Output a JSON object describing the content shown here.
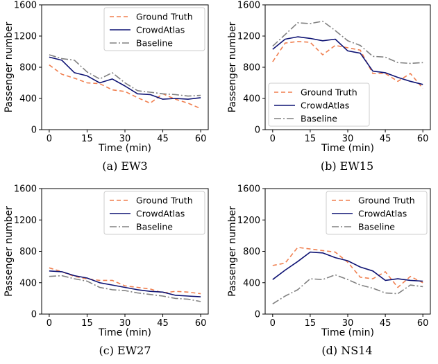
{
  "legend": [
    "Ground Truth",
    "CrowdAtlas",
    "Baseline"
  ],
  "colors": {
    "Ground Truth": "#f07f4f",
    "CrowdAtlas": "#0d1273",
    "Baseline": "#808080"
  },
  "chart_data": [
    {
      "type": "line",
      "caption": "(a)  EW3",
      "xlabel": "Time (min)",
      "ylabel": "Passenger number",
      "xlim": [
        -3,
        63
      ],
      "ylim": [
        0,
        1600
      ],
      "xticks": [
        0,
        15,
        30,
        45,
        60
      ],
      "yticks": [
        0,
        400,
        800,
        1200,
        1600
      ],
      "grid": false,
      "legend_position": "top-right",
      "x": [
        0,
        5,
        10,
        15,
        20,
        25,
        30,
        35,
        40,
        45,
        50,
        55,
        60
      ],
      "series": [
        {
          "name": "Ground Truth",
          "values": [
            830,
            710,
            660,
            600,
            590,
            510,
            490,
            410,
            340,
            460,
            390,
            340,
            270
          ]
        },
        {
          "name": "CrowdAtlas",
          "values": [
            930,
            890,
            730,
            690,
            600,
            650,
            560,
            460,
            450,
            390,
            400,
            390,
            410
          ]
        },
        {
          "name": "Baseline",
          "values": [
            960,
            910,
            890,
            740,
            650,
            730,
            600,
            500,
            480,
            460,
            450,
            430,
            440
          ]
        }
      ]
    },
    {
      "type": "line",
      "caption": "(b)  EW15",
      "xlabel": "Time (min)",
      "ylabel": "Passenger number",
      "xlim": [
        -3,
        63
      ],
      "ylim": [
        0,
        1600
      ],
      "xticks": [
        0,
        15,
        30,
        45,
        60
      ],
      "yticks": [
        0,
        400,
        800,
        1200,
        1600
      ],
      "grid": false,
      "legend_position": "bottom-left",
      "x": [
        0,
        5,
        10,
        15,
        20,
        25,
        30,
        35,
        40,
        45,
        50,
        55,
        60
      ],
      "series": [
        {
          "name": "Ground Truth",
          "values": [
            870,
            1110,
            1130,
            1120,
            960,
            1080,
            1050,
            1020,
            720,
            720,
            620,
            720,
            530
          ]
        },
        {
          "name": "CrowdAtlas",
          "values": [
            1030,
            1160,
            1190,
            1170,
            1140,
            1160,
            1010,
            980,
            750,
            730,
            670,
            620,
            580
          ]
        },
        {
          "name": "Baseline",
          "values": [
            1070,
            1220,
            1370,
            1360,
            1390,
            1270,
            1140,
            1080,
            940,
            930,
            860,
            850,
            860
          ]
        }
      ]
    },
    {
      "type": "line",
      "caption": "(c)  EW27",
      "xlabel": "Time (min)",
      "ylabel": "Passenger number",
      "xlim": [
        -3,
        63
      ],
      "ylim": [
        0,
        1600
      ],
      "xticks": [
        0,
        15,
        30,
        45,
        60
      ],
      "yticks": [
        0,
        400,
        800,
        1200,
        1600
      ],
      "grid": false,
      "legend_position": "top-right",
      "x": [
        0,
        5,
        10,
        15,
        20,
        25,
        30,
        35,
        40,
        45,
        50,
        55,
        60
      ],
      "series": [
        {
          "name": "Ground Truth",
          "values": [
            590,
            540,
            480,
            450,
            430,
            430,
            360,
            340,
            320,
            270,
            290,
            280,
            260
          ]
        },
        {
          "name": "CrowdAtlas",
          "values": [
            550,
            540,
            490,
            460,
            400,
            370,
            340,
            310,
            290,
            280,
            240,
            230,
            220
          ]
        },
        {
          "name": "Baseline",
          "values": [
            480,
            490,
            450,
            420,
            340,
            310,
            300,
            270,
            250,
            230,
            200,
            190,
            160
          ]
        }
      ]
    },
    {
      "type": "line",
      "caption": "(d)  NS14",
      "xlabel": "Time (min)",
      "ylabel": "Passenger number",
      "xlim": [
        -3,
        63
      ],
      "ylim": [
        0,
        1600
      ],
      "xticks": [
        0,
        15,
        30,
        45,
        60
      ],
      "yticks": [
        0,
        400,
        800,
        1200,
        1600
      ],
      "grid": false,
      "legend_position": "top-right",
      "x": [
        0,
        5,
        10,
        15,
        20,
        25,
        30,
        35,
        40,
        45,
        50,
        55,
        60
      ],
      "series": [
        {
          "name": "Ground Truth",
          "values": [
            620,
            650,
            850,
            830,
            810,
            790,
            660,
            470,
            450,
            540,
            340,
            480,
            400
          ]
        },
        {
          "name": "CrowdAtlas",
          "values": [
            440,
            560,
            670,
            790,
            780,
            720,
            680,
            600,
            550,
            430,
            450,
            430,
            420
          ]
        },
        {
          "name": "Baseline",
          "values": [
            130,
            230,
            310,
            450,
            440,
            500,
            440,
            370,
            330,
            270,
            260,
            370,
            350
          ]
        }
      ]
    }
  ]
}
